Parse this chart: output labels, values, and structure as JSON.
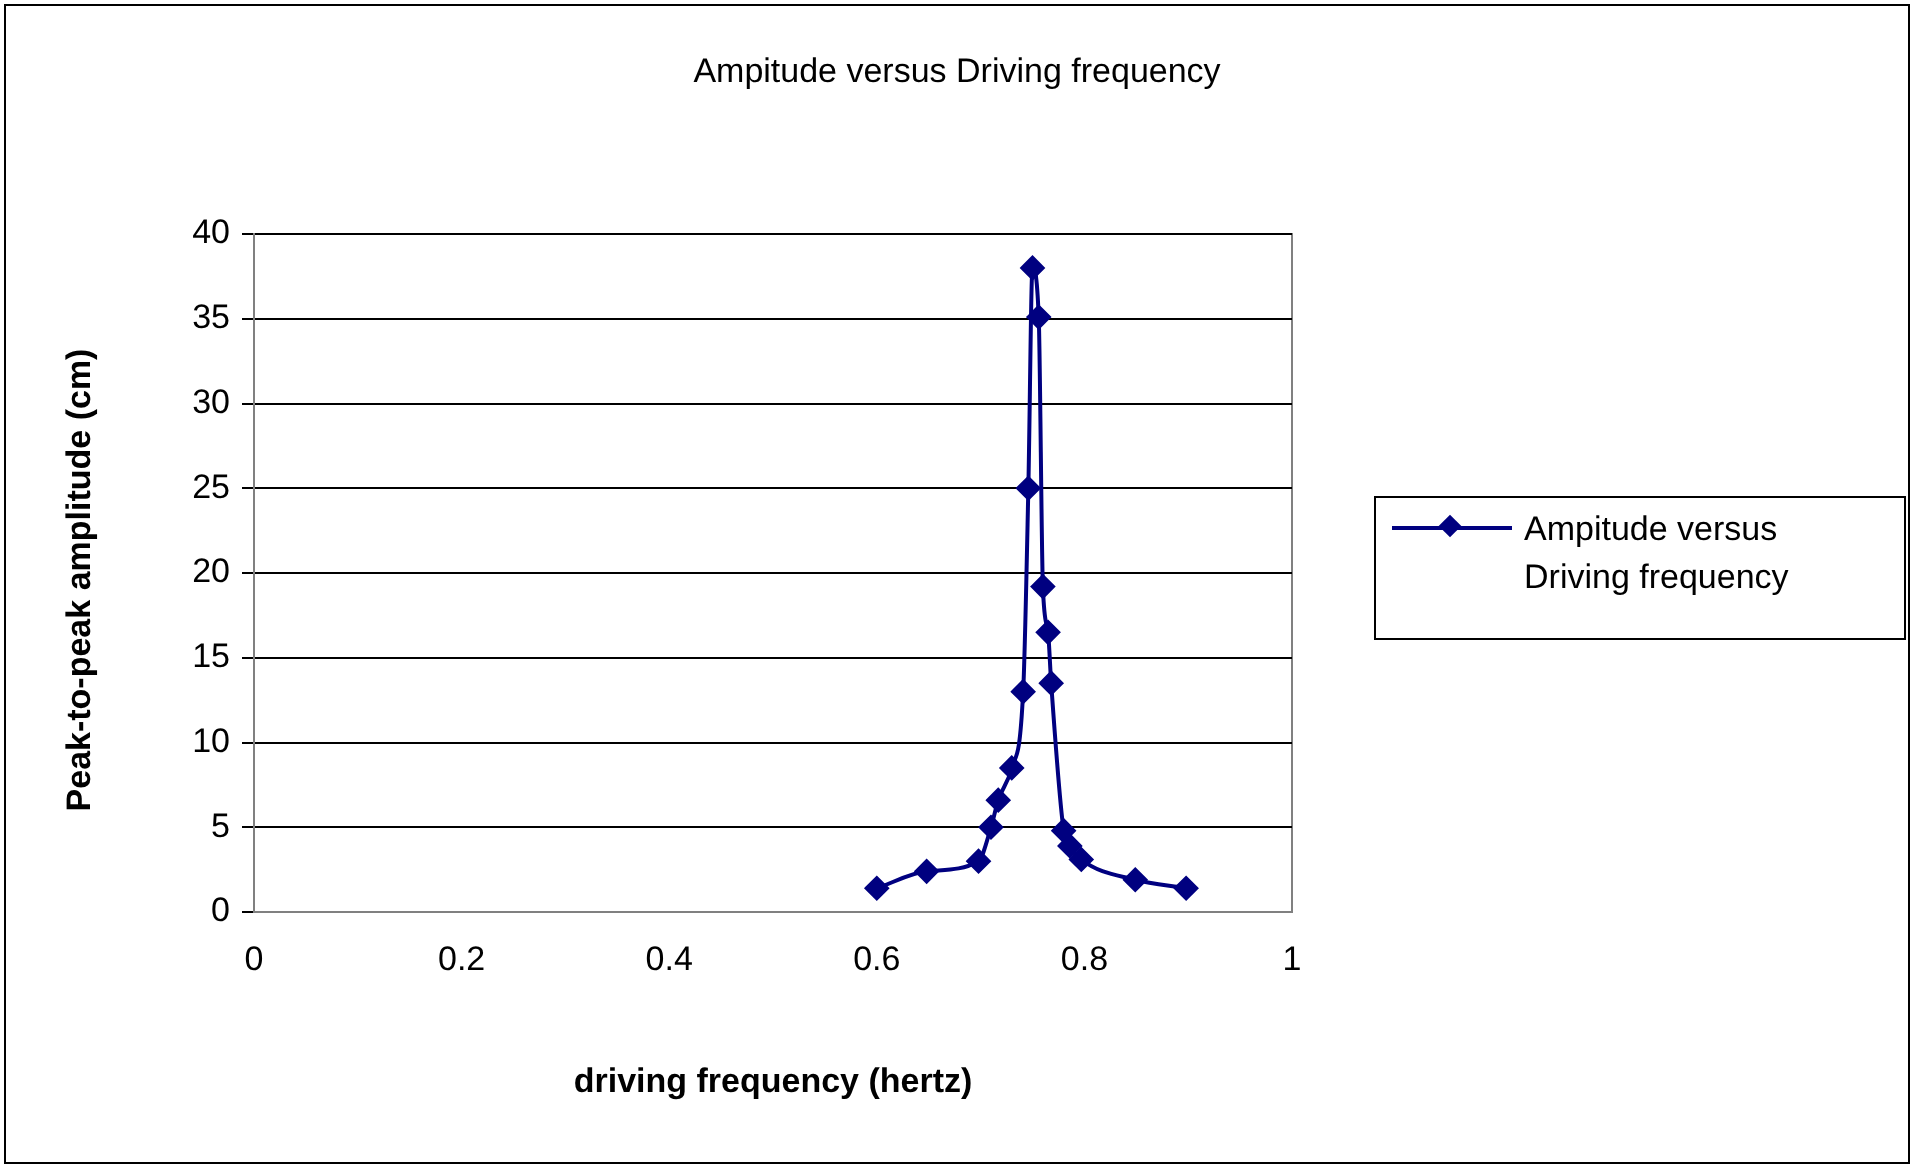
{
  "chart_data": {
    "type": "line",
    "title": "Ampitude versus Driving frequency",
    "xlabel": "driving frequency (hertz)",
    "ylabel": "Peak-to-peak amplitude (cm)",
    "series": [
      {
        "name": "Ampitude versus Driving frequency",
        "color": "#000080",
        "x": [
          0.6,
          0.648,
          0.698,
          0.71,
          0.717,
          0.73,
          0.741,
          0.746,
          0.75,
          0.756,
          0.76,
          0.765,
          0.768,
          0.78,
          0.786,
          0.797,
          0.849,
          0.898
        ],
        "values": [
          1.4,
          2.4,
          3.0,
          5.0,
          6.6,
          8.5,
          13.0,
          25.0,
          38.0,
          35.1,
          19.2,
          16.5,
          13.5,
          4.8,
          3.9,
          3.1,
          1.9,
          1.4
        ]
      }
    ],
    "xlim": [
      0,
      1
    ],
    "xticks": [
      0,
      0.2,
      0.4,
      0.6,
      0.8,
      1
    ],
    "ylim": [
      0,
      40
    ],
    "yticks": [
      0,
      5,
      10,
      15,
      20,
      25,
      30,
      35,
      40
    ],
    "grid": "y",
    "legend": "right",
    "marker": "diamond",
    "line_style": "solid"
  }
}
